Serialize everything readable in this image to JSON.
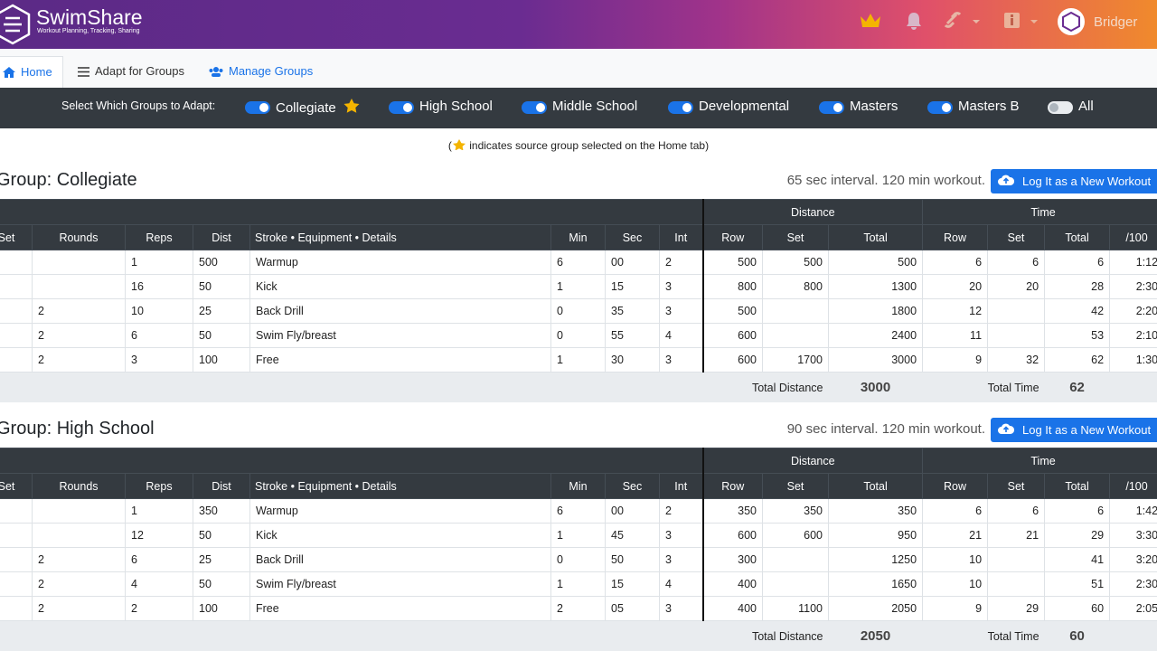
{
  "header": {
    "brand": "SwimShare",
    "tagline": "Workout Planning, Tracking, Sharing",
    "user": "Bridger"
  },
  "tabs": [
    "Home",
    "Adapt for Groups",
    "Manage Groups"
  ],
  "selector": {
    "label": "Select Which Groups to Adapt:",
    "toggles": [
      {
        "label": "Collegiate",
        "on": true,
        "source": true
      },
      {
        "label": "High School",
        "on": true,
        "source": false
      },
      {
        "label": "Middle School",
        "on": true,
        "source": false
      },
      {
        "label": "Developmental",
        "on": true,
        "source": false
      },
      {
        "label": "Masters",
        "on": true,
        "source": false
      },
      {
        "label": "Masters B",
        "on": true,
        "source": false
      },
      {
        "label": "All",
        "on": false,
        "source": false
      }
    ]
  },
  "note": {
    "open": "(",
    "text": "indicates source group selected on the Home tab",
    "close": ")"
  },
  "groups": [
    {
      "title": "Group: Collegiate",
      "info": "65 sec interval. 120 min workout.",
      "button": "Log It as a New Workout",
      "header_groups": [
        "Distance",
        "Time"
      ],
      "columns": [
        "Set",
        "Rounds",
        "Reps",
        "Dist",
        "Stroke • Equipment • Details",
        "Min",
        "Sec",
        "Int",
        "Row",
        "Set",
        "Total",
        "Row",
        "Set",
        "Total",
        "/100"
      ],
      "rows": [
        [
          null,
          null,
          "1",
          "500",
          "Warmup",
          "6",
          "00",
          "2",
          "500",
          "500",
          "500",
          "6",
          "6",
          "6",
          "1:12"
        ],
        [
          null,
          null,
          "16",
          "50",
          "Kick",
          "1",
          "15",
          "3",
          "800",
          "800",
          "1300",
          "20",
          "20",
          "28",
          "2:30"
        ],
        [
          null,
          "2",
          "10",
          "25",
          "Back Drill",
          "0",
          "35",
          "3",
          "500",
          null,
          "1800",
          "12",
          null,
          "42",
          "2:20"
        ],
        [
          null,
          "2",
          "6",
          "50",
          "Swim Fly/breast",
          "0",
          "55",
          "4",
          "600",
          null,
          "2400",
          "11",
          null,
          "53",
          "2:10"
        ],
        [
          null,
          "2",
          "3",
          "100",
          "Free",
          "1",
          "30",
          "3",
          "600",
          "1700",
          "3000",
          "9",
          "32",
          "62",
          "1:30"
        ]
      ],
      "totals": {
        "distance_label": "Total Distance",
        "distance": "3000",
        "time_label": "Total Time",
        "time": "62"
      }
    },
    {
      "title": "Group: High School",
      "info": "90 sec interval. 120 min workout.",
      "button": "Log It as a New Workout",
      "header_groups": [
        "Distance",
        "Time"
      ],
      "columns": [
        "Set",
        "Rounds",
        "Reps",
        "Dist",
        "Stroke • Equipment • Details",
        "Min",
        "Sec",
        "Int",
        "Row",
        "Set",
        "Total",
        "Row",
        "Set",
        "Total",
        "/100"
      ],
      "rows": [
        [
          null,
          null,
          "1",
          "350",
          "Warmup",
          "6",
          "00",
          "2",
          "350",
          "350",
          "350",
          "6",
          "6",
          "6",
          "1:42"
        ],
        [
          null,
          null,
          "12",
          "50",
          "Kick",
          "1",
          "45",
          "3",
          "600",
          "600",
          "950",
          "21",
          "21",
          "29",
          "3:30"
        ],
        [
          null,
          "2",
          "6",
          "25",
          "Back Drill",
          "0",
          "50",
          "3",
          "300",
          null,
          "1250",
          "10",
          null,
          "41",
          "3:20"
        ],
        [
          null,
          "2",
          "4",
          "50",
          "Swim Fly/breast",
          "1",
          "15",
          "4",
          "400",
          null,
          "1650",
          "10",
          null,
          "51",
          "2:30"
        ],
        [
          null,
          "2",
          "2",
          "100",
          "Free",
          "2",
          "05",
          "3",
          "400",
          "1100",
          "2050",
          "9",
          "29",
          "60",
          "2:05"
        ]
      ],
      "totals": {
        "distance_label": "Total Distance",
        "distance": "2050",
        "time_label": "Total Time",
        "time": "60"
      }
    }
  ]
}
